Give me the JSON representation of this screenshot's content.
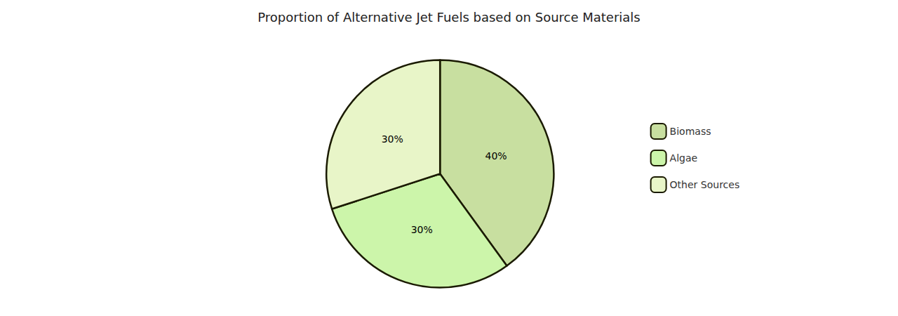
{
  "chart_data": {
    "type": "pie",
    "title": "Proportion of Alternative Jet Fuels based on Source Materials",
    "categories": [
      "Biomass",
      "Algae",
      "Other Sources"
    ],
    "values": [
      40,
      30,
      30
    ],
    "value_labels": [
      "40%",
      "30%",
      "30%"
    ],
    "colors": [
      "#c8dfa0",
      "#ccf5aa",
      "#e8f5c8"
    ],
    "data_labels": true,
    "legend": "right"
  }
}
